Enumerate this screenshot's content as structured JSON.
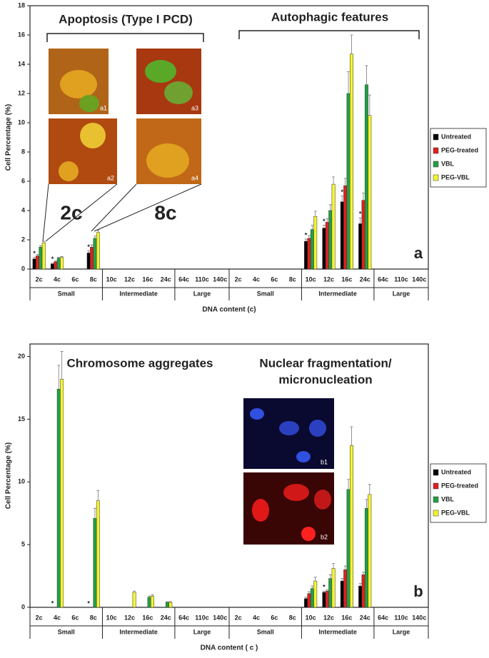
{
  "chart_data": [
    {
      "type": "bar",
      "y_label": "Cell Percentage (%)",
      "x_label": "DNA content (c)",
      "groups": [
        {
          "name": "Small",
          "categories": [
            "2c",
            "4c",
            "6c",
            "8c"
          ]
        },
        {
          "name": "Intermediate",
          "categories": [
            "10c",
            "12c",
            "16c",
            "24c"
          ]
        },
        {
          "name": "Large",
          "categories": [
            "64c",
            "110c",
            "140c"
          ]
        },
        {
          "name": "Small",
          "categories": [
            "2c",
            "4c",
            "6c",
            "8c"
          ]
        },
        {
          "name": "Intermediate",
          "categories": [
            "10c",
            "12c",
            "16c",
            "24c"
          ]
        },
        {
          "name": "Large",
          "categories": [
            "64c",
            "110c",
            "140c"
          ]
        }
      ],
      "ylim": [
        0,
        18
      ],
      "yticks": [
        0,
        2,
        4,
        6,
        8,
        10,
        12,
        14,
        16,
        18
      ],
      "series": [
        {
          "name": "Untreated",
          "color": "#000000",
          "values": [
            0.7,
            0.35,
            0,
            1.1,
            0,
            0,
            0,
            0,
            0,
            0,
            0,
            0,
            0,
            0,
            0,
            1.9,
            2.8,
            4.6,
            3.1,
            0,
            0,
            0
          ],
          "errors": [
            0.1,
            0.05,
            0,
            0.15,
            0,
            0,
            0,
            0,
            0,
            0,
            0,
            0,
            0,
            0,
            0,
            0.15,
            0.2,
            0.4,
            0.4,
            0,
            0,
            0
          ],
          "significance": [
            "*",
            "*",
            null,
            "*",
            null,
            null,
            null,
            null,
            null,
            null,
            null,
            null,
            null,
            null,
            null,
            "*",
            "*",
            "*",
            "*",
            null,
            null,
            null
          ]
        },
        {
          "name": "PEG-treated",
          "color": "#e02020",
          "values": [
            0.9,
            0.5,
            0,
            1.5,
            0,
            0,
            0,
            0,
            0,
            0,
            0,
            0,
            0,
            0,
            0,
            2.1,
            3.2,
            5.7,
            4.7,
            0,
            0,
            0
          ],
          "errors": [
            0.1,
            0.05,
            0,
            0.15,
            0,
            0,
            0,
            0,
            0,
            0,
            0,
            0,
            0,
            0,
            0,
            0.2,
            0.25,
            0.5,
            0.5,
            0,
            0,
            0
          ]
        },
        {
          "name": "VBL",
          "color": "#22a045",
          "values": [
            1.5,
            0.75,
            0,
            2.1,
            0,
            0,
            0,
            0,
            0,
            0,
            0,
            0,
            0,
            0,
            0,
            2.7,
            4.0,
            12.0,
            12.6,
            0,
            0,
            0
          ],
          "errors": [
            0.1,
            0.05,
            0,
            0.15,
            0,
            0,
            0,
            0,
            0,
            0,
            0,
            0,
            0,
            0,
            0,
            0.3,
            0.4,
            1.5,
            1.3,
            0,
            0,
            0
          ]
        },
        {
          "name": "PEG-VBL",
          "color": "#f4f430",
          "values": [
            1.8,
            0.8,
            0,
            2.5,
            0,
            0,
            0,
            0,
            0,
            0,
            0,
            0,
            0,
            0,
            0,
            3.6,
            5.8,
            14.7,
            10.5,
            0,
            0,
            0
          ],
          "errors": [
            0.1,
            0.05,
            0,
            0.15,
            0,
            0,
            0,
            0,
            0,
            0,
            0,
            0,
            0,
            0,
            0,
            0.35,
            0.5,
            1.3,
            1.4,
            0,
            0,
            0
          ]
        }
      ],
      "annotations": {
        "left": "Apoptosis (Type I PCD)",
        "right": "Autophagic features",
        "zoom_left": "2c",
        "zoom_right": "8c",
        "images": [
          "a1",
          "a2",
          "a3",
          "a4"
        ],
        "panel": "a"
      }
    },
    {
      "type": "bar",
      "y_label": "Cell Percentage (%)",
      "x_label": "DNA content ( c )",
      "groups": [
        {
          "name": "Small",
          "categories": [
            "2c",
            "4c",
            "6c",
            "8c"
          ]
        },
        {
          "name": "Intermediate",
          "categories": [
            "10c",
            "12c",
            "16c",
            "24c"
          ]
        },
        {
          "name": "Large",
          "categories": [
            "64c",
            "110c",
            "140c"
          ]
        },
        {
          "name": "Small",
          "categories": [
            "2c",
            "4c",
            "6c",
            "8c"
          ]
        },
        {
          "name": "Intermediate",
          "categories": [
            "10c",
            "12c",
            "16c",
            "24c"
          ]
        },
        {
          "name": "Large",
          "categories": [
            "64c",
            "110c",
            "140c"
          ]
        }
      ],
      "ylim": [
        0,
        21
      ],
      "yticks": [
        0,
        5,
        10,
        15,
        20
      ],
      "series": [
        {
          "name": "Untreated",
          "color": "#000000",
          "values": [
            0,
            0,
            0,
            0,
            0,
            0,
            0,
            0,
            0,
            0,
            0,
            0,
            0,
            0,
            0,
            0.7,
            1.2,
            2.1,
            1.7,
            0,
            0,
            0
          ],
          "errors": [
            0,
            0,
            0,
            0,
            0,
            0,
            0,
            0,
            0,
            0,
            0,
            0,
            0,
            0,
            0,
            0.1,
            0.1,
            0.2,
            0.2,
            0,
            0,
            0
          ],
          "significance": [
            null,
            "*",
            null,
            "*",
            null,
            null,
            null,
            null,
            null,
            null,
            null,
            null,
            null,
            null,
            null,
            null,
            "*",
            null,
            null,
            null,
            null,
            null
          ]
        },
        {
          "name": "PEG-treated",
          "color": "#e02020",
          "values": [
            0,
            0,
            0,
            0,
            0,
            0,
            0,
            0,
            0,
            0,
            0,
            0,
            0,
            0,
            0,
            1.1,
            1.3,
            3.0,
            2.6,
            0,
            0,
            0
          ],
          "errors": [
            0,
            0,
            0,
            0,
            0,
            0,
            0,
            0,
            0,
            0,
            0,
            0,
            0,
            0,
            0,
            0.15,
            0.1,
            0.3,
            0.2,
            0,
            0,
            0
          ]
        },
        {
          "name": "VBL",
          "color": "#22a045",
          "values": [
            0,
            17.4,
            0,
            7.1,
            0,
            0,
            0.8,
            0.4,
            0,
            0,
            0,
            0,
            0,
            0,
            0,
            1.5,
            2.3,
            9.4,
            7.9,
            0,
            0,
            0
          ],
          "errors": [
            0,
            1.9,
            0,
            0.8,
            0,
            0,
            0.1,
            0.05,
            0,
            0,
            0,
            0,
            0,
            0,
            0,
            0.2,
            0.3,
            0.8,
            0.7,
            0,
            0,
            0
          ]
        },
        {
          "name": "PEG-VBL",
          "color": "#f4f430",
          "values": [
            0,
            18.2,
            0,
            8.5,
            0,
            1.2,
            0.9,
            0.4,
            0,
            0,
            0,
            0,
            0,
            0,
            0,
            2.1,
            3.1,
            12.9,
            9.0,
            0,
            0,
            0
          ],
          "errors": [
            0,
            2.2,
            0,
            0.8,
            0,
            0.1,
            0.1,
            0.05,
            0,
            0,
            0,
            0,
            0,
            0,
            0,
            0.3,
            0.4,
            1.5,
            0.8,
            0,
            0,
            0
          ]
        }
      ],
      "annotations": {
        "left": "Chromosome aggregates",
        "right_line1": "Nuclear fragmentation/",
        "right_line2": "micronucleation",
        "images": [
          "b1",
          "b2"
        ],
        "panel": "b"
      }
    }
  ]
}
